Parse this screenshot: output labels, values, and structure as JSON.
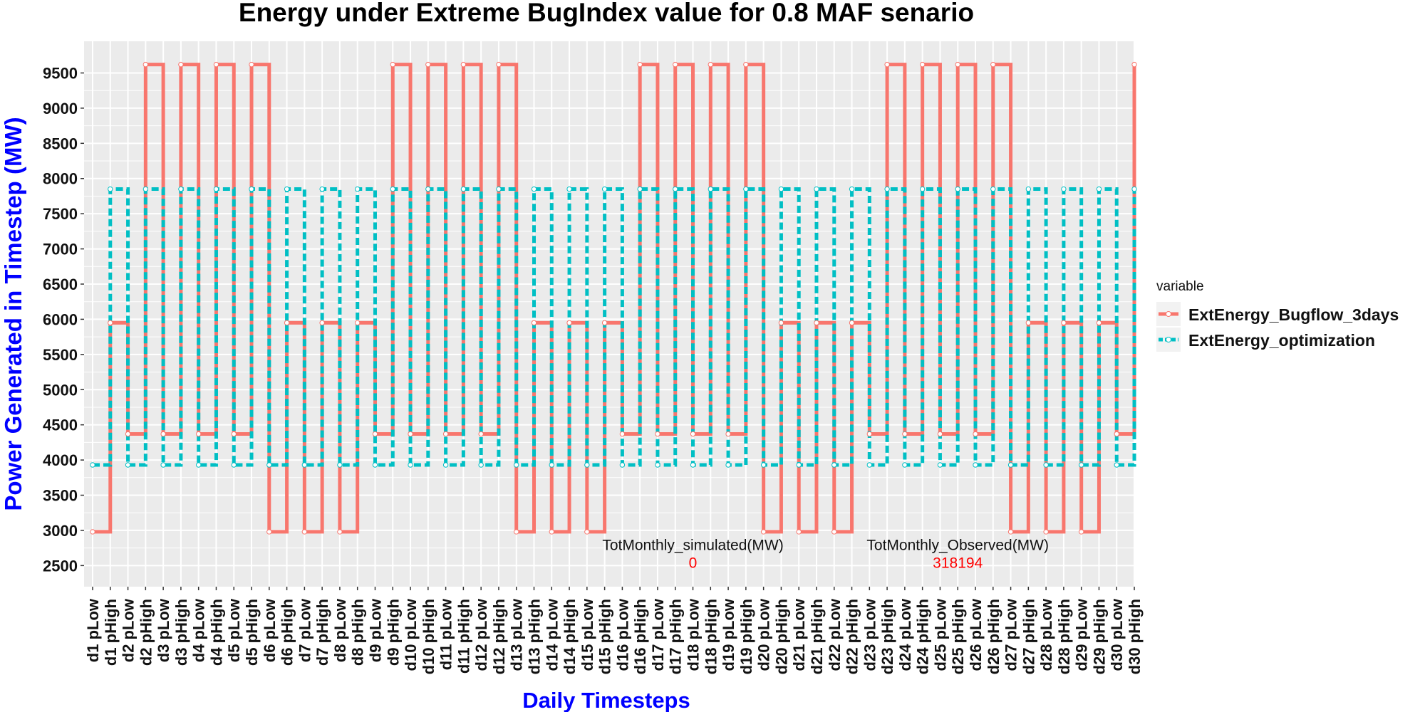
{
  "colors": {
    "panel_background": "#ebebeb",
    "gridline": "#ffffff",
    "axis_title": "#0000ff",
    "annotation_value": "#ff0000",
    "legend_key_background": "#f2f2f2"
  },
  "chart_data": {
    "type": "line",
    "subtype": "step",
    "title": "Energy under Extreme BugIndex value for 0.8 MAF senario",
    "xlabel": "Daily Timesteps",
    "ylabel": "Power Generated in Timestep (MW)",
    "ylim": [
      2200,
      9950
    ],
    "yticks": [
      2500,
      3000,
      3500,
      4000,
      4500,
      5000,
      5500,
      6000,
      6500,
      7000,
      7500,
      8000,
      8500,
      9000,
      9500
    ],
    "ytick_labels": [
      "2500",
      "3000",
      "3500",
      "4000",
      "4500",
      "5000",
      "5500",
      "6000",
      "6500",
      "7000",
      "7500",
      "8000",
      "8500",
      "9000",
      "9500"
    ],
    "grid": true,
    "categories": [
      "d1 pLow",
      "d1 pHigh",
      "d2 pLow",
      "d2 pHigh",
      "d3 pLow",
      "d3 pHigh",
      "d4 pLow",
      "d4 pHigh",
      "d5 pLow",
      "d5 pHigh",
      "d6 pLow",
      "d6 pHigh",
      "d7 pLow",
      "d7 pHigh",
      "d8 pLow",
      "d8 pHigh",
      "d9 pLow",
      "d9 pHigh",
      "d10 pLow",
      "d10 pHigh",
      "d11 pLow",
      "d11 pHigh",
      "d12 pLow",
      "d12 pHigh",
      "d13 pLow",
      "d13 pHigh",
      "d14 pLow",
      "d14 pHigh",
      "d15 pLow",
      "d15 pHigh",
      "d16 pLow",
      "d16 pHigh",
      "d17 pLow",
      "d17 pHigh",
      "d18 pLow",
      "d18 pHigh",
      "d19 pLow",
      "d19 pHigh",
      "d20 pLow",
      "d20 pHigh",
      "d21 pLow",
      "d21 pHigh",
      "d22 pLow",
      "d22 pHigh",
      "d23 pLow",
      "d23 pHigh",
      "d24 pLow",
      "d24 pHigh",
      "d25 pLow",
      "d25 pHigh",
      "d26 pLow",
      "d26 pHigh",
      "d27 pLow",
      "d27 pHigh",
      "d28 pLow",
      "d28 pHigh",
      "d29 pLow",
      "d29 pHigh",
      "d30 pLow",
      "d30 pHigh"
    ],
    "series": [
      {
        "name": "ExtEnergy_Bugflow_3days",
        "color": "#f8766d",
        "linestyle": "solid",
        "values": [
          2980,
          5950,
          4370,
          9620,
          4370,
          9620,
          4370,
          9620,
          4370,
          9620,
          2980,
          5950,
          2980,
          5950,
          2980,
          5950,
          4370,
          9620,
          4370,
          9620,
          4370,
          9620,
          4370,
          9620,
          2980,
          5950,
          2980,
          5950,
          2980,
          5950,
          4370,
          9620,
          4370,
          9620,
          4370,
          9620,
          4370,
          9620,
          2980,
          5950,
          2980,
          5950,
          2980,
          5950,
          4370,
          9620,
          4370,
          9620,
          4370,
          9620,
          4370,
          9620,
          2980,
          5950,
          2980,
          5950,
          2980,
          5950,
          4370,
          9620
        ]
      },
      {
        "name": "ExtEnergy_optimization",
        "color": "#00bfc4",
        "linestyle": "dashed",
        "values": [
          3930,
          7850,
          3930,
          7850,
          3930,
          7850,
          3930,
          7850,
          3930,
          7850,
          3930,
          7850,
          3930,
          7850,
          3930,
          7850,
          3930,
          7850,
          3930,
          7850,
          3930,
          7850,
          3930,
          7850,
          3930,
          7850,
          3930,
          7850,
          3930,
          7850,
          3930,
          7850,
          3930,
          7850,
          3930,
          7850,
          3930,
          7850,
          3930,
          7850,
          3930,
          7850,
          3930,
          7850,
          3930,
          7850,
          3930,
          7850,
          3930,
          7850,
          3930,
          7850,
          3930,
          7850,
          3930,
          7850,
          3930,
          7850,
          3930,
          7850
        ]
      }
    ],
    "legend": {
      "title": "variable",
      "placement": "right",
      "entries": [
        "ExtEnergy_Bugflow_3days",
        "ExtEnergy_optimization"
      ]
    },
    "annotations": [
      {
        "label": "TotMonthly_simulated(MW)",
        "value": "0",
        "x_category": "d18 pLow",
        "y": 2800
      },
      {
        "label": "TotMonthly_Observed(MW)",
        "value": "318194",
        "x_category": "d25 pHigh",
        "y": 2800
      }
    ]
  }
}
